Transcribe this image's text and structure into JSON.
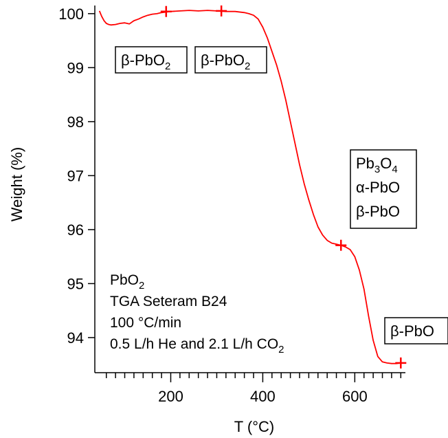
{
  "chart_data": {
    "type": "line",
    "title": "",
    "xlabel": "T (°C)",
    "ylabel": "Weight (%)",
    "xlim": [
      35,
      710
    ],
    "ylim": [
      93.35,
      100.1
    ],
    "x_ticks": [
      200,
      400,
      600
    ],
    "y_ticks": [
      94,
      95,
      96,
      97,
      98,
      99,
      100
    ],
    "x_minor_step": 20,
    "grid": false,
    "legend": "none",
    "line_color": "#ff0000",
    "series": [
      {
        "x": [
          45,
          50,
          55,
          60,
          65,
          70,
          80,
          90,
          100,
          110,
          120,
          130,
          140,
          150,
          160,
          170,
          180,
          190,
          200,
          220,
          240,
          260,
          280,
          300,
          320,
          340,
          360,
          370,
          380,
          390,
          400,
          410,
          420,
          430,
          440,
          450,
          460,
          470,
          480,
          490,
          500,
          510,
          520,
          530,
          540,
          550,
          560,
          570,
          580,
          590,
          600,
          610,
          620,
          630,
          640,
          650,
          660,
          670,
          680,
          690,
          700
        ],
        "y": [
          100.05,
          99.95,
          99.87,
          99.82,
          99.8,
          99.79,
          99.8,
          99.82,
          99.83,
          99.81,
          99.87,
          99.9,
          99.94,
          99.97,
          99.99,
          100.0,
          100.02,
          100.03,
          100.04,
          100.05,
          100.06,
          100.05,
          100.06,
          100.05,
          100.04,
          100.04,
          100.02,
          100.0,
          99.97,
          99.9,
          99.75,
          99.55,
          99.3,
          99.05,
          98.75,
          98.4,
          98.0,
          97.6,
          97.2,
          96.85,
          96.55,
          96.28,
          96.05,
          95.9,
          95.8,
          95.75,
          95.73,
          95.71,
          95.68,
          95.63,
          95.5,
          95.25,
          94.9,
          94.4,
          93.95,
          93.65,
          93.55,
          93.53,
          93.52,
          93.52,
          93.53
        ]
      }
    ],
    "markers": [
      {
        "x": 190,
        "y": 100.04
      },
      {
        "x": 310,
        "y": 100.05
      },
      {
        "x": 570,
        "y": 95.71
      },
      {
        "x": 700,
        "y": 93.53
      }
    ],
    "phase_labels": [
      {
        "lines": [
          {
            "base": "β-PbO",
            "sub": "2"
          }
        ]
      },
      {
        "lines": [
          {
            "base": "β-PbO",
            "sub": "2"
          }
        ]
      },
      {
        "lines": [
          {
            "base": "Pb",
            "sub": "3",
            "base2": "O",
            "sub2": "4"
          },
          {
            "base": "α-PbO"
          },
          {
            "base": "β-PbO"
          }
        ]
      },
      {
        "lines": [
          {
            "base": "β-PbO"
          }
        ]
      }
    ],
    "annotation": [
      {
        "base": "PbO",
        "sub": "2"
      },
      {
        "base": "TGA Seteram B24"
      },
      {
        "base": "100 °C/min"
      },
      {
        "base": "0.5 L/h He and  2.1 L/h CO",
        "sub": "2"
      }
    ]
  }
}
